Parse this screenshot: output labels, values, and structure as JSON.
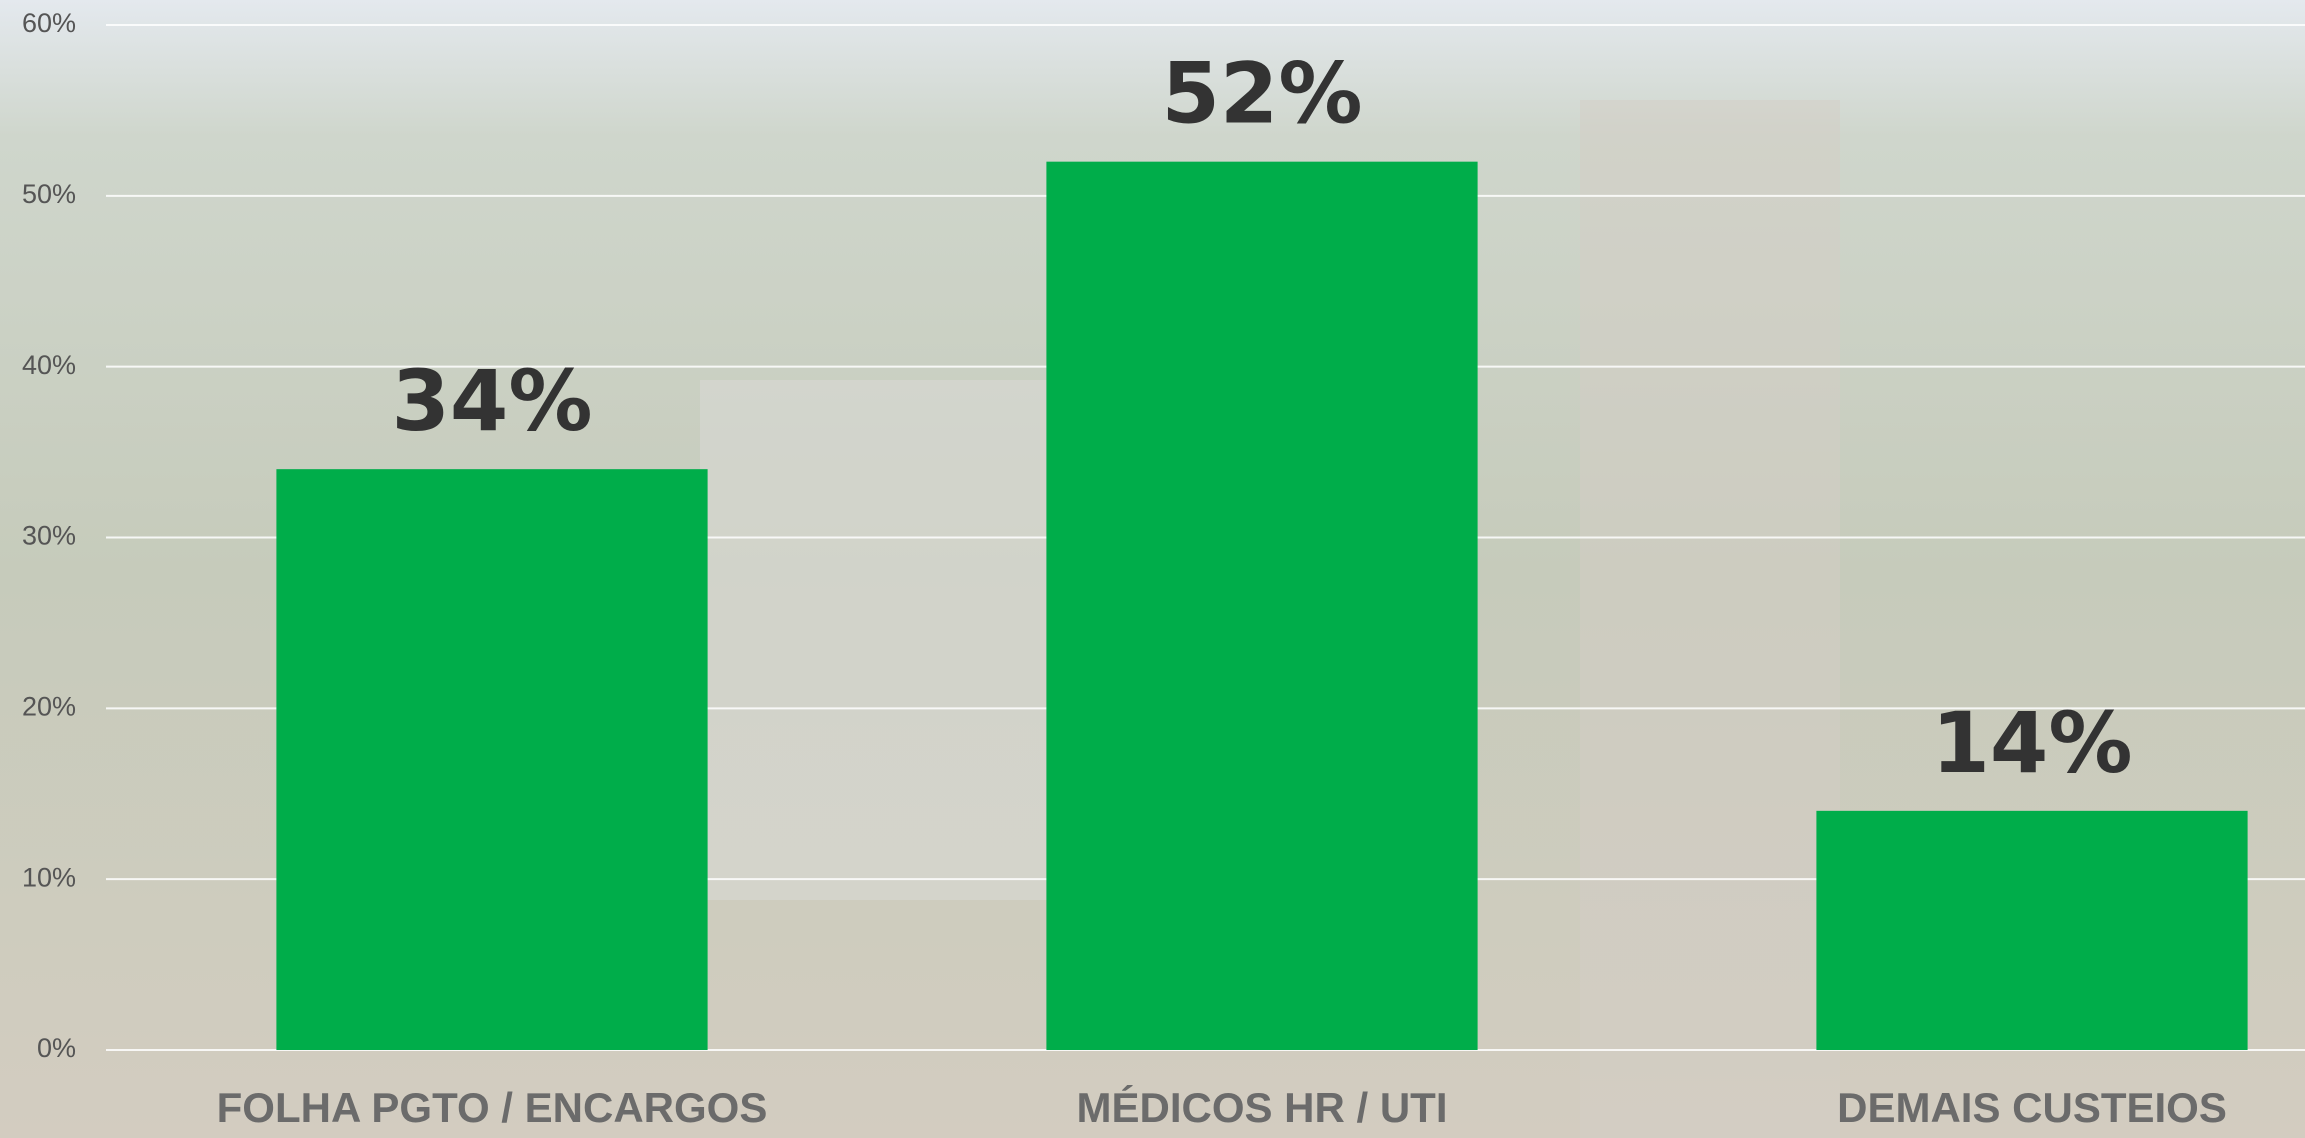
{
  "chart_data": {
    "type": "bar",
    "categories": [
      "FOLHA PGTO / ENCARGOS",
      "MÉDICOS HR / UTI",
      "DEMAIS CUSTEIOS"
    ],
    "values": [
      34,
      52,
      14
    ],
    "value_labels": [
      "34%",
      "52%",
      "14%"
    ],
    "color": "#00ad4a",
    "ylim": [
      0,
      60
    ],
    "yticks": [
      {
        "value": 0,
        "label": "0%"
      },
      {
        "value": 10,
        "label": "10%"
      },
      {
        "value": 20,
        "label": "20%"
      },
      {
        "value": 30,
        "label": "30%"
      },
      {
        "value": 40,
        "label": "40%"
      },
      {
        "value": 50,
        "label": "50%"
      },
      {
        "value": 60,
        "label": "60%"
      }
    ],
    "grid": true
  }
}
